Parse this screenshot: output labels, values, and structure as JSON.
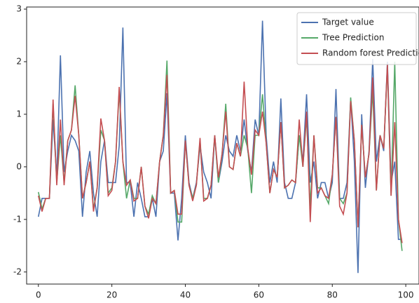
{
  "chart_data": {
    "type": "line",
    "x": [
      0,
      1,
      2,
      3,
      4,
      5,
      6,
      7,
      8,
      9,
      10,
      11,
      12,
      13,
      14,
      15,
      16,
      17,
      18,
      19,
      20,
      21,
      22,
      23,
      24,
      25,
      26,
      27,
      28,
      29,
      30,
      31,
      32,
      33,
      34,
      35,
      36,
      37,
      38,
      39,
      40,
      41,
      42,
      43,
      44,
      45,
      46,
      47,
      48,
      49,
      50,
      51,
      52,
      53,
      54,
      55,
      56,
      57,
      58,
      59,
      60,
      61,
      62,
      63,
      64,
      65,
      66,
      67,
      68,
      69,
      70,
      71,
      72,
      73,
      74,
      75,
      76,
      77,
      78,
      79,
      80,
      81,
      82,
      83,
      84,
      85,
      86,
      87,
      88,
      89,
      90,
      91,
      92,
      93,
      94,
      95,
      96,
      97,
      98,
      99
    ],
    "series": [
      {
        "name": "Target value",
        "color": "#4c72b0",
        "values": [
          -0.95,
          -0.6,
          -0.6,
          -0.6,
          0.9,
          -0.2,
          2.12,
          -0.1,
          0.3,
          0.6,
          0.5,
          0.3,
          -0.95,
          -0.1,
          0.3,
          -0.5,
          -0.95,
          0.1,
          0.5,
          -0.3,
          -0.3,
          -0.3,
          0.4,
          2.65,
          -0.3,
          -0.3,
          -0.95,
          -0.3,
          -0.6,
          -0.95,
          -0.95,
          -0.6,
          -0.95,
          0.1,
          0.3,
          1.4,
          -0.5,
          -0.5,
          -1.4,
          -0.6,
          0.6,
          -0.3,
          -0.6,
          -0.3,
          0.4,
          -0.1,
          -0.3,
          -0.6,
          0.6,
          -0.3,
          0.1,
          0.6,
          0.3,
          0.2,
          0.6,
          0.3,
          0.9,
          0.3,
          -0.1,
          0.9,
          0.6,
          2.78,
          0.6,
          -0.3,
          0.1,
          -0.3,
          1.3,
          -0.3,
          -0.6,
          -0.6,
          -0.3,
          0.6,
          0.1,
          1.38,
          -0.3,
          0.1,
          -0.6,
          -0.3,
          -0.3,
          -0.6,
          -0.3,
          1.48,
          -0.6,
          -0.6,
          -0.3,
          1.3,
          0.1,
          -2.02,
          1.0,
          -0.4,
          0.3,
          2.05,
          0.1,
          0.6,
          0.3,
          2.0,
          -0.3,
          0.1,
          -1.38,
          -1.38
        ]
      },
      {
        "name": " Tree Prediction",
        "color": "#55a868",
        "values": [
          -0.48,
          -0.8,
          -0.6,
          -0.6,
          1.2,
          -0.3,
          0.6,
          -0.3,
          0.5,
          0.7,
          1.55,
          0.6,
          -0.6,
          -0.3,
          0.1,
          -0.8,
          -0.4,
          0.7,
          0.5,
          -0.5,
          -0.4,
          0.1,
          1.45,
          0.1,
          -0.6,
          -0.25,
          -0.6,
          -0.6,
          0.0,
          -0.75,
          -0.9,
          -0.55,
          -0.7,
          0.1,
          0.6,
          2.02,
          -0.5,
          -0.45,
          -1.05,
          -1.05,
          0.5,
          -0.35,
          -0.6,
          -0.35,
          0.5,
          -0.6,
          -0.6,
          -0.35,
          0.6,
          -0.3,
          0.25,
          1.2,
          0.0,
          -0.05,
          0.45,
          0.2,
          0.6,
          0.35,
          -0.5,
          0.6,
          0.6,
          1.38,
          0.45,
          -0.5,
          -0.05,
          -0.2,
          0.85,
          -0.4,
          -0.35,
          -0.25,
          -0.3,
          0.6,
          0.0,
          0.95,
          -0.75,
          0.6,
          -0.4,
          -0.4,
          -0.55,
          -0.7,
          -0.15,
          0.95,
          -0.6,
          -0.7,
          -0.5,
          1.32,
          0.5,
          -1.15,
          0.8,
          -0.2,
          0.25,
          1.45,
          -0.45,
          0.6,
          0.35,
          1.9,
          -0.55,
          2.0,
          -1.0,
          -1.6
        ]
      },
      {
        "name": "Random forest Prediction",
        "color": "#c44e52",
        "values": [
          -0.55,
          -0.85,
          -0.6,
          -0.6,
          1.28,
          -0.35,
          0.9,
          -0.35,
          0.5,
          0.7,
          1.35,
          0.6,
          -0.6,
          -0.3,
          0.1,
          -0.85,
          -0.4,
          0.92,
          0.5,
          -0.55,
          -0.45,
          0.1,
          1.52,
          0.1,
          -0.35,
          -0.25,
          -0.65,
          -0.6,
          0.0,
          -0.75,
          -0.98,
          -0.6,
          -0.7,
          0.1,
          0.6,
          1.75,
          -0.5,
          -0.45,
          -0.9,
          -0.9,
          0.5,
          -0.35,
          -0.65,
          -0.35,
          0.55,
          -0.65,
          -0.6,
          -0.35,
          0.6,
          -0.2,
          0.25,
          1.05,
          0.0,
          -0.05,
          0.45,
          0.2,
          1.62,
          0.35,
          -0.15,
          0.7,
          0.6,
          1.05,
          0.45,
          -0.5,
          -0.05,
          -0.2,
          0.85,
          -0.4,
          -0.35,
          -0.25,
          -0.3,
          0.9,
          0.0,
          1.05,
          -1.05,
          0.6,
          -0.5,
          -0.4,
          -0.55,
          -0.6,
          -0.15,
          0.95,
          -0.75,
          -0.9,
          -0.5,
          1.25,
          0.5,
          -1.15,
          0.8,
          -0.2,
          0.25,
          1.7,
          -0.45,
          0.6,
          0.35,
          1.95,
          -0.55,
          0.85,
          -1.0,
          -1.45
        ]
      }
    ],
    "xlim": [
      -3.2,
      103.6
    ],
    "ylim": [
      -2.23,
      3.04
    ],
    "xticks": [
      0,
      20,
      40,
      60,
      80,
      100
    ],
    "yticks": [
      -2,
      -1,
      0,
      1,
      2,
      3
    ],
    "legend": "upper right"
  }
}
